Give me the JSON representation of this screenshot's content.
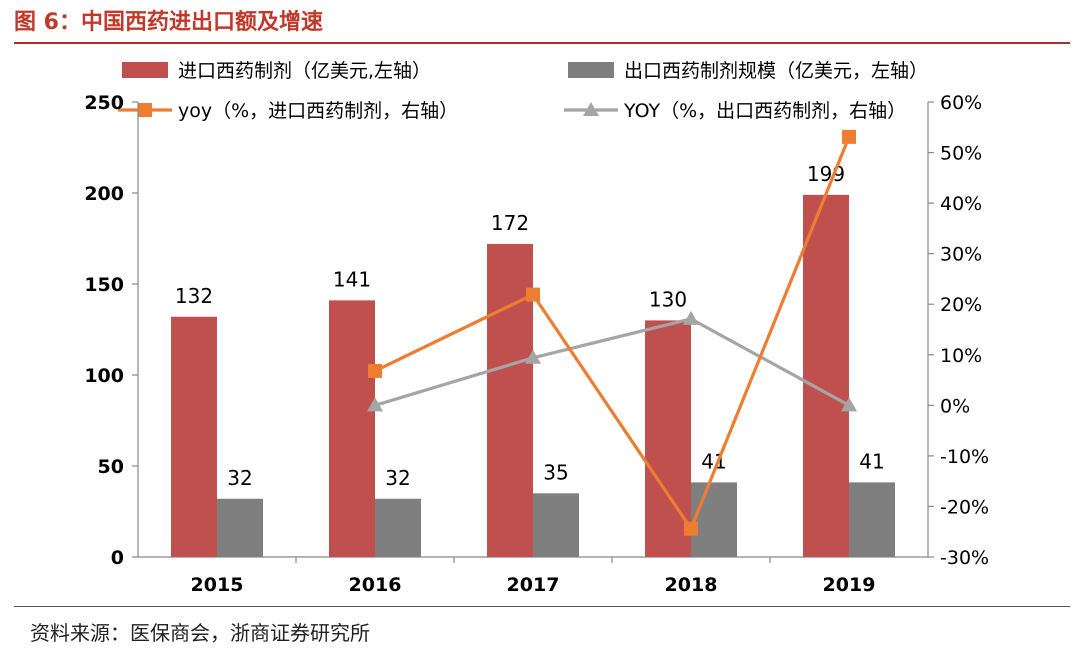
{
  "header": {
    "title": "图 6：中国西药进出口额及增速"
  },
  "source": "资料来源：医保商会，浙商证券研究所",
  "chart_data": {
    "type": "bar",
    "categories": [
      "2015",
      "2016",
      "2017",
      "2018",
      "2019"
    ],
    "series": [
      {
        "name": "进口西药制剂（亿美元,左轴）",
        "kind": "bar",
        "axis": "left",
        "color": "#c0504d",
        "values": [
          132,
          141,
          172,
          130,
          199
        ]
      },
      {
        "name": "出口西药制剂规模（亿美元，左轴）",
        "kind": "bar",
        "axis": "left",
        "color": "#7f7f7f",
        "values": [
          32,
          32,
          35,
          41,
          41
        ]
      },
      {
        "name": "yoy（%，进口西药制剂，右轴）",
        "kind": "line",
        "axis": "right",
        "color": "#ed7d31",
        "marker": "square",
        "values": [
          null,
          6.8,
          21.9,
          -24.4,
          53.1
        ]
      },
      {
        "name": "YOY（%，出口西药制剂，右轴）",
        "kind": "line",
        "axis": "right",
        "color": "#a5a5a5",
        "marker": "triangle",
        "values": [
          null,
          0,
          9.4,
          17.1,
          0
        ]
      }
    ],
    "left_axis": {
      "ylim": [
        0,
        250
      ],
      "ticks": [
        "0",
        "50",
        "100",
        "150",
        "200",
        "250"
      ]
    },
    "right_axis": {
      "ylim": [
        -30,
        60
      ],
      "ticks": [
        "-30%",
        "-20%",
        "-10%",
        "0%",
        "10%",
        "20%",
        "30%",
        "40%",
        "50%",
        "60%"
      ]
    },
    "legend": "top",
    "grid": false
  }
}
